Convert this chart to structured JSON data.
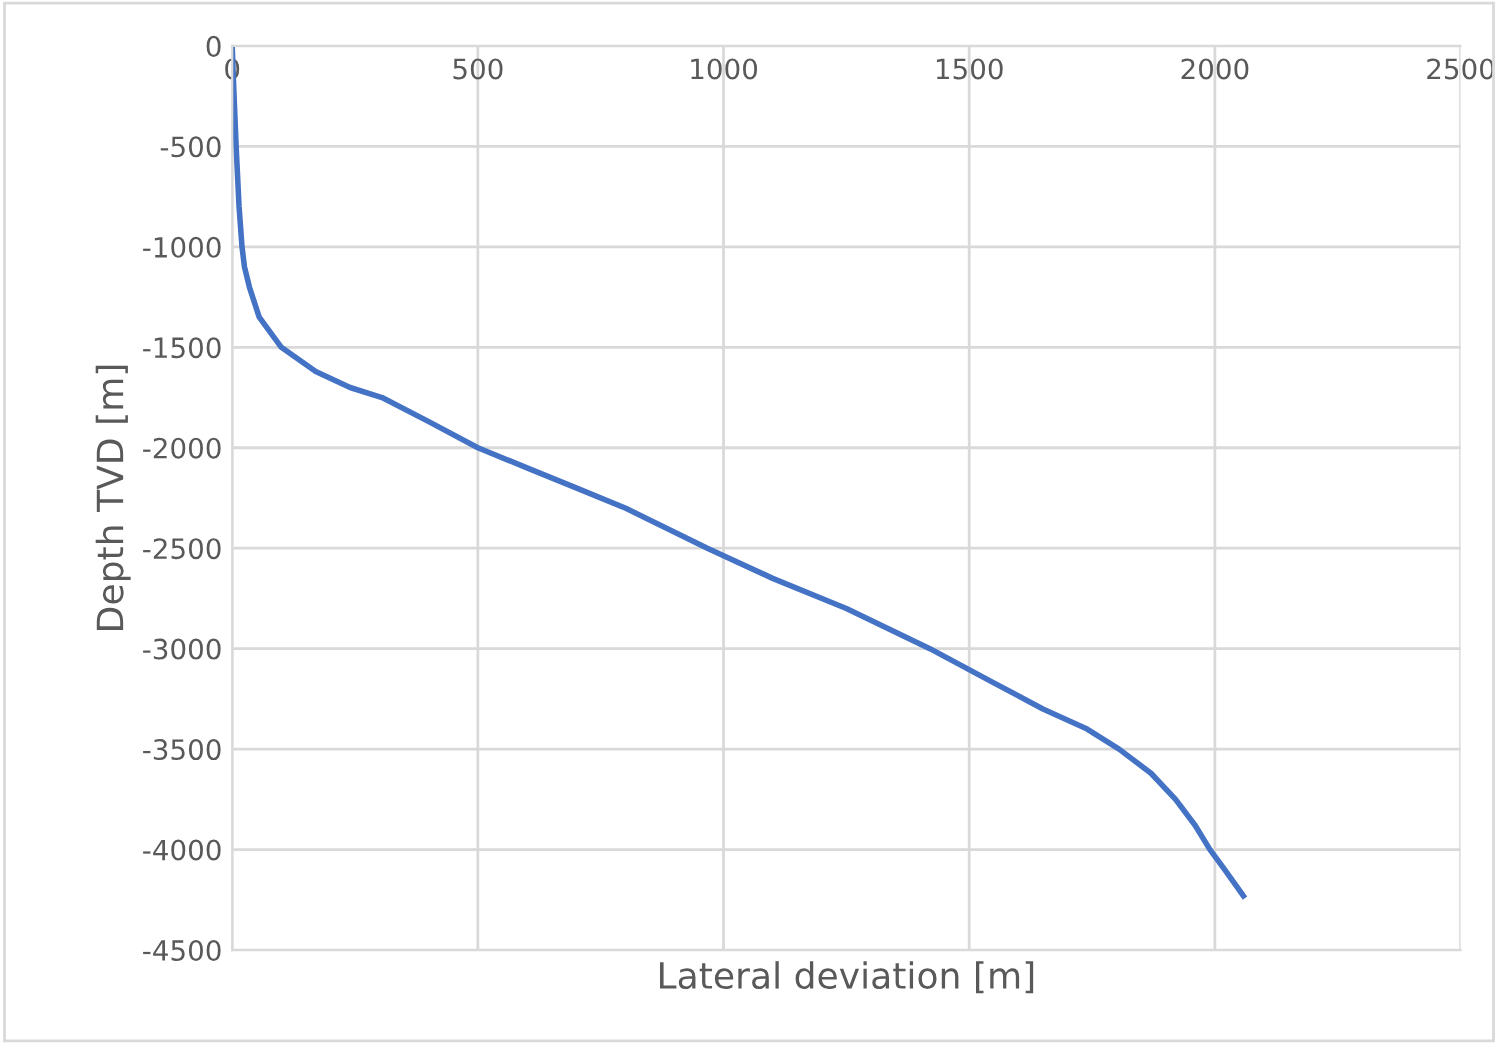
{
  "chart_data": {
    "type": "line",
    "xlabel": "Lateral deviation [m]",
    "ylabel": "Depth TVD [m]",
    "series": [
      {
        "color": "#4472c4",
        "x": [
          0,
          3,
          8,
          14,
          20,
          25,
          35,
          55,
          100,
          170,
          240,
          305,
          400,
          500,
          600,
          700,
          800,
          967,
          1100,
          1250,
          1420,
          1550,
          1650,
          1740,
          1805,
          1870,
          1920,
          1960,
          1990,
          2020,
          2058
        ],
        "values": [
          0,
          -200,
          -500,
          -800,
          -1000,
          -1100,
          -1200,
          -1350,
          -1500,
          -1620,
          -1700,
          -1750,
          -1870,
          -2000,
          -2100,
          -2200,
          -2300,
          -2500,
          -2650,
          -2800,
          -3000,
          -3170,
          -3300,
          -3400,
          -3500,
          -3620,
          -3750,
          -3880,
          -4000,
          -4100,
          -4230
        ]
      }
    ],
    "xlim": [
      0,
      2500
    ],
    "xticks": [
      0,
      500,
      1000,
      1500,
      2000,
      2500
    ],
    "ylim": [
      -4500,
      0
    ],
    "yticks": [
      -4500,
      -4000,
      -3500,
      -3000,
      -2500,
      -2000,
      -1500,
      -1000,
      -500,
      0
    ],
    "grid": true,
    "legend": false,
    "line_style": "solid"
  }
}
